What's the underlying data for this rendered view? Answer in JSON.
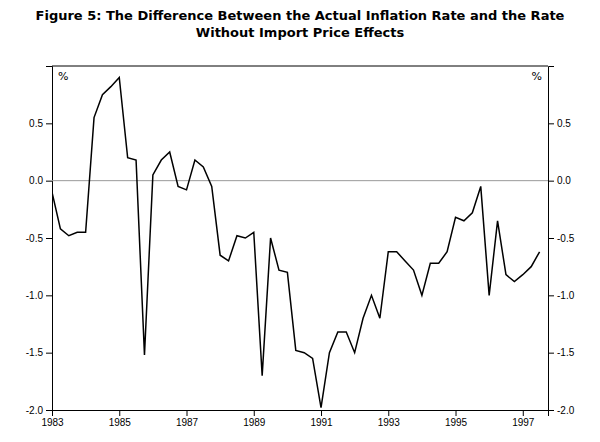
{
  "chart_data": {
    "type": "line",
    "title": "Figure 5: The Difference Between the Actual Inflation Rate and the Rate\nWithout Import Price Effects",
    "ylabel": "%",
    "y2label": "%",
    "x": [
      1983.0,
      1983.25,
      1983.5,
      1983.75,
      1984.0,
      1984.25,
      1984.5,
      1984.75,
      1985.0,
      1985.25,
      1985.5,
      1985.75,
      1986.0,
      1986.25,
      1986.5,
      1986.75,
      1987.0,
      1987.25,
      1987.5,
      1987.75,
      1988.0,
      1988.25,
      1988.5,
      1988.75,
      1989.0,
      1989.25,
      1989.5,
      1989.75,
      1990.0,
      1990.25,
      1990.5,
      1990.75,
      1991.0,
      1991.25,
      1991.5,
      1991.75,
      1992.0,
      1992.25,
      1992.5,
      1992.75,
      1993.0,
      1993.25,
      1993.5,
      1993.75,
      1994.0,
      1994.25,
      1994.5,
      1994.75,
      1995.0,
      1995.25,
      1995.5,
      1995.75,
      1996.0,
      1996.25,
      1996.5,
      1996.75,
      1997.0,
      1997.25,
      1997.5
    ],
    "values": [
      -0.1,
      -0.42,
      -0.48,
      -0.45,
      -0.45,
      0.55,
      0.75,
      0.82,
      0.9,
      0.2,
      0.18,
      -1.52,
      0.05,
      0.18,
      0.25,
      -0.05,
      -0.08,
      0.18,
      0.12,
      -0.05,
      -0.65,
      -0.7,
      -0.48,
      -0.5,
      -0.45,
      -1.7,
      -0.5,
      -0.78,
      -0.8,
      -1.48,
      -1.5,
      -1.55,
      -1.98,
      -1.5,
      -1.32,
      -1.32,
      -1.5,
      -1.2,
      -1.0,
      -1.2,
      -0.62,
      -0.62,
      -0.7,
      -0.78,
      -1.0,
      -0.72,
      -0.72,
      -0.62,
      -0.32,
      -0.35,
      -0.28,
      -0.05,
      -1.0,
      -0.35,
      -0.82,
      -0.88,
      -0.82,
      -0.75,
      -0.62
    ],
    "color": "#000000",
    "reference_line": 0,
    "xlim": [
      1983,
      1997.75
    ],
    "xticks": [
      1983,
      1985,
      1987,
      1989,
      1991,
      1993,
      1995,
      1997
    ],
    "ylim": [
      -2.0,
      1.0
    ],
    "yticks": [
      {
        "value": -2.0,
        "label": "-2.0"
      },
      -1.5,
      {
        "value": -1.0,
        "label": "-1.0"
      },
      -0.5,
      {
        "value": 0.0,
        "label": "0.0"
      },
      0.5
    ],
    "y2lim": [
      -2.0,
      1.0
    ],
    "y2ticks": [
      {
        "value": -2.0,
        "label": "-2.0"
      },
      -1.5,
      {
        "value": -1.0,
        "label": "-1.0"
      },
      -0.5,
      {
        "value": 0.0,
        "label": "0.0"
      },
      0.5
    ],
    "grid": false
  }
}
